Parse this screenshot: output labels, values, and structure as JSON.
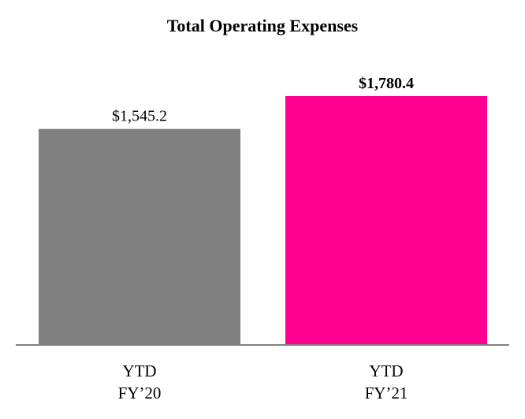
{
  "chart_data": {
    "type": "bar",
    "title": "Total Operating Expenses",
    "categories": [
      {
        "line1": "YTD",
        "line2": "FY’20"
      },
      {
        "line1": "YTD",
        "line2": "FY’21"
      }
    ],
    "values": [
      1545.2,
      1780.4
    ],
    "value_labels": [
      "$1,545.2",
      "$1,780.4"
    ],
    "value_label_bold": [
      false,
      true
    ],
    "colors": [
      "#808080",
      "#ff0090"
    ],
    "axis_color": "#808080",
    "ylim": [
      0,
      1780.4
    ],
    "grid": false,
    "xlabel": "",
    "ylabel": ""
  }
}
